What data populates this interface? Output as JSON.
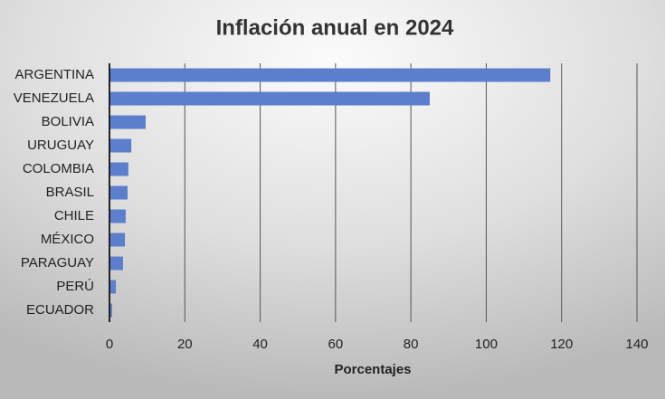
{
  "chart_data": {
    "type": "bar",
    "orientation": "horizontal",
    "title": "Inflación anual en 2024",
    "categories": [
      "ARGENTINA",
      "VENEZUELA",
      "BOLIVIA",
      "URUGUAY",
      "COLOMBIA",
      "BRASIL",
      "CHILE",
      "MÉXICO",
      "PARAGUAY",
      "PERÚ",
      "ECUADOR"
    ],
    "values": [
      117,
      85,
      9.6,
      5.8,
      5.0,
      4.8,
      4.3,
      4.1,
      3.6,
      1.7,
      0.7
    ],
    "color": "#5b7fcc",
    "x_label": "Porcentajes",
    "xlim": [
      0,
      140
    ],
    "xticks": [
      0,
      20,
      40,
      60,
      80,
      100,
      120,
      140
    ],
    "grid": true
  }
}
